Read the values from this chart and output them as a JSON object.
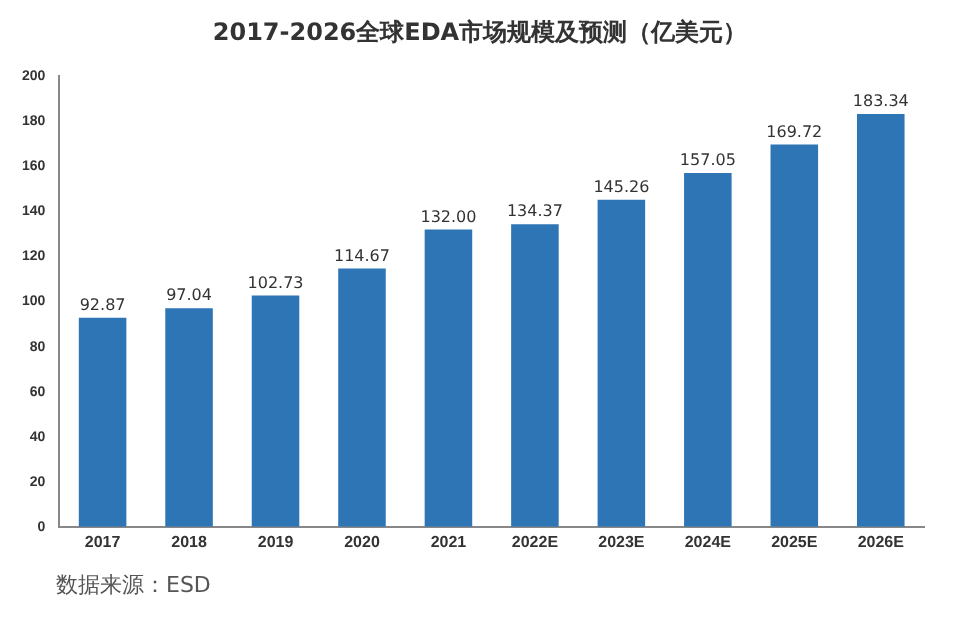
{
  "chart_data": {
    "type": "bar",
    "title": "2017-2026全球EDA市场规模及预测（亿美元）",
    "categories": [
      "2017",
      "2018",
      "2019",
      "2020",
      "2021",
      "2022E",
      "2023E",
      "2024E",
      "2025E",
      "2026E"
    ],
    "values": [
      92.87,
      97.04,
      102.73,
      114.67,
      132.0,
      134.37,
      145.26,
      157.05,
      169.72,
      183.34
    ],
    "value_labels": [
      "92.87",
      "97.04",
      "102.73",
      "114.67",
      "132.00",
      "134.37",
      "145.26",
      "157.05",
      "169.72",
      "183.34"
    ],
    "color": "#2e75b6",
    "ylim": [
      0,
      200
    ],
    "yticks": [
      0,
      20,
      40,
      60,
      80,
      100,
      120,
      140,
      160,
      180,
      200
    ],
    "grid": false,
    "legend": false,
    "annotations": [
      "数据来源：ESD"
    ]
  }
}
